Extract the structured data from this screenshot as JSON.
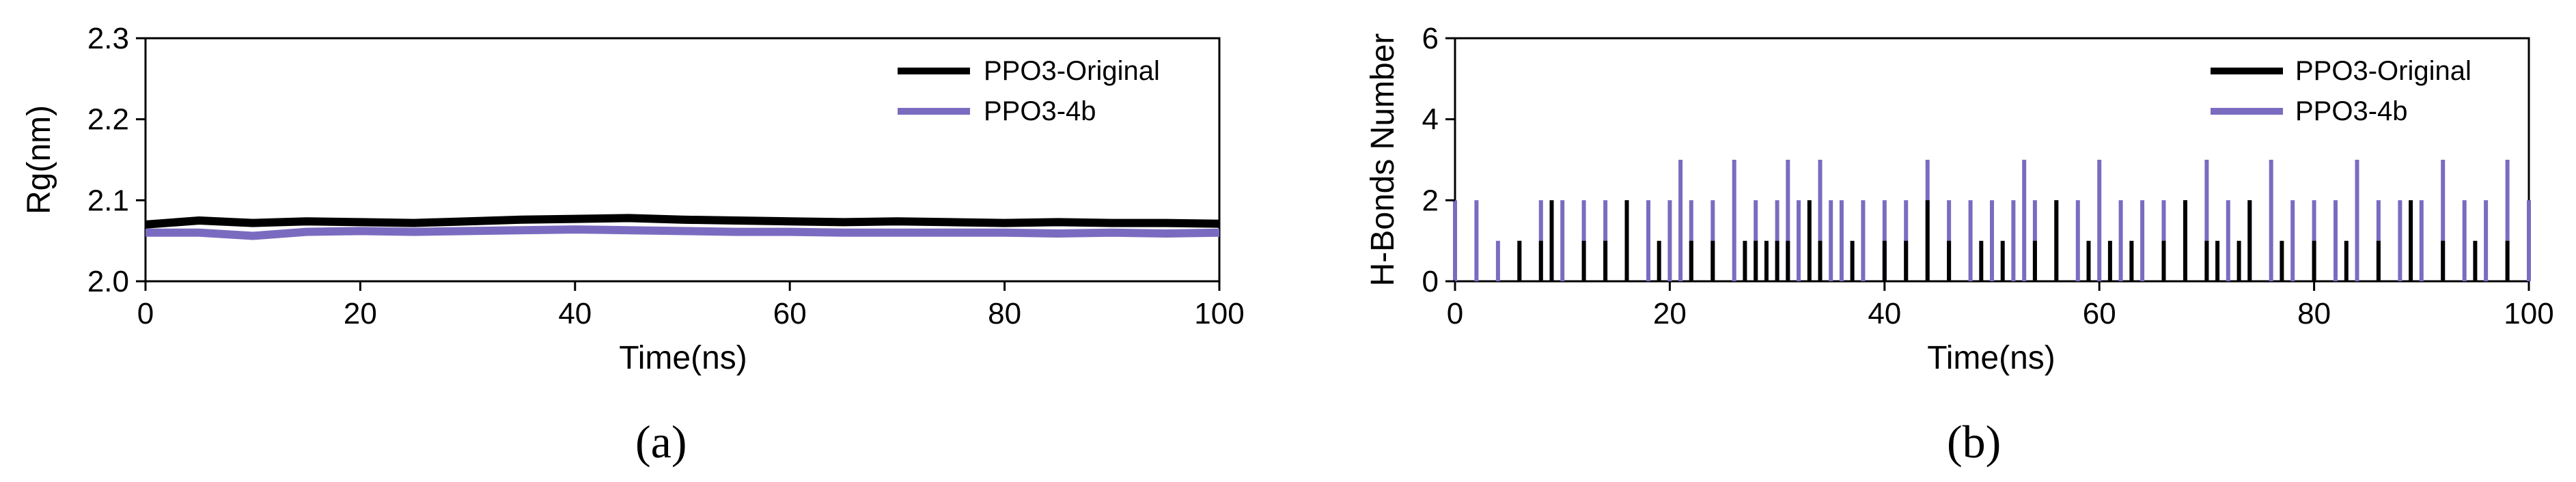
{
  "chart_data": [
    {
      "panel_label": "(a)",
      "type": "line",
      "title": "",
      "xlabel": "Time(ns)",
      "ylabel": "Rg(nm)",
      "xlim": [
        0,
        100
      ],
      "ylim": [
        2.0,
        2.3
      ],
      "xticks": [
        0,
        20,
        40,
        60,
        80,
        100
      ],
      "yticks": [
        2.0,
        2.1,
        2.2,
        2.3
      ],
      "xtick_labels": [
        "0",
        "20",
        "40",
        "60",
        "80",
        "100"
      ],
      "ytick_labels": [
        "2.0",
        "2.1",
        "2.2",
        "2.3"
      ],
      "grid": false,
      "legend_position": "top-right",
      "series": [
        {
          "name": "PPO3-Original",
          "color": "#000000",
          "x": [
            0,
            5,
            10,
            15,
            20,
            25,
            30,
            35,
            40,
            45,
            50,
            55,
            60,
            65,
            70,
            75,
            80,
            85,
            90,
            95,
            100
          ],
          "y": [
            2.07,
            2.075,
            2.072,
            2.074,
            2.073,
            2.072,
            2.074,
            2.076,
            2.077,
            2.078,
            2.076,
            2.075,
            2.074,
            2.073,
            2.074,
            2.073,
            2.072,
            2.073,
            2.072,
            2.072,
            2.071
          ]
        },
        {
          "name": "PPO3-4b",
          "color": "#7b6bc0",
          "x": [
            0,
            5,
            10,
            15,
            20,
            25,
            30,
            35,
            40,
            45,
            50,
            55,
            60,
            65,
            70,
            75,
            80,
            85,
            90,
            95,
            100
          ],
          "y": [
            2.06,
            2.06,
            2.056,
            2.061,
            2.062,
            2.061,
            2.062,
            2.063,
            2.064,
            2.063,
            2.062,
            2.061,
            2.061,
            2.06,
            2.06,
            2.06,
            2.06,
            2.059,
            2.06,
            2.059,
            2.06
          ]
        }
      ]
    },
    {
      "panel_label": "(b)",
      "type": "line",
      "title": "",
      "xlabel": "Time(ns)",
      "ylabel": "H-Bonds Number",
      "xlim": [
        0,
        100
      ],
      "ylim": [
        0,
        6
      ],
      "xticks": [
        0,
        20,
        40,
        60,
        80,
        100
      ],
      "yticks": [
        0,
        2,
        4,
        6
      ],
      "xtick_labels": [
        "0",
        "20",
        "40",
        "60",
        "80",
        "100"
      ],
      "ytick_labels": [
        "0",
        "2",
        "4",
        "6"
      ],
      "grid": false,
      "legend_position": "top-right",
      "series": [
        {
          "name": "PPO3-Original",
          "color": "#000000",
          "x": [
            6,
            8,
            9,
            12,
            14,
            16,
            19,
            22,
            24,
            27,
            28,
            29,
            30,
            31,
            33,
            34,
            37,
            40,
            42,
            44,
            46,
            49,
            51,
            54,
            56,
            59,
            61,
            63,
            66,
            68,
            70,
            71,
            73,
            74,
            77,
            80,
            83,
            86,
            89,
            92,
            95,
            98
          ],
          "y": [
            1,
            1,
            2,
            1,
            1,
            2,
            1,
            1,
            1,
            1,
            1,
            1,
            1,
            1,
            2,
            1,
            1,
            1,
            1,
            2,
            1,
            1,
            1,
            1,
            2,
            1,
            1,
            1,
            1,
            2,
            1,
            1,
            1,
            2,
            1,
            1,
            1,
            1,
            2,
            1,
            1,
            1
          ]
        },
        {
          "name": "PPO3-4b",
          "color": "#7b6bc0",
          "x": [
            0,
            2,
            4,
            6,
            8,
            10,
            12,
            14,
            16,
            18,
            20,
            21,
            22,
            24,
            26,
            28,
            30,
            31,
            32,
            34,
            35,
            36,
            38,
            40,
            42,
            44,
            46,
            48,
            50,
            52,
            53,
            54,
            56,
            58,
            60,
            62,
            64,
            66,
            68,
            70,
            72,
            74,
            76,
            78,
            80,
            82,
            84,
            86,
            88,
            90,
            92,
            94,
            96,
            98,
            100
          ],
          "y": [
            2,
            2,
            1,
            1,
            2,
            2,
            2,
            2,
            2,
            2,
            2,
            3,
            2,
            2,
            3,
            2,
            2,
            3,
            2,
            3,
            2,
            2,
            2,
            2,
            2,
            3,
            2,
            2,
            2,
            2,
            3,
            2,
            2,
            2,
            3,
            2,
            2,
            2,
            2,
            3,
            2,
            2,
            3,
            2,
            2,
            2,
            3,
            2,
            2,
            2,
            3,
            2,
            2,
            3,
            2
          ]
        }
      ]
    }
  ]
}
